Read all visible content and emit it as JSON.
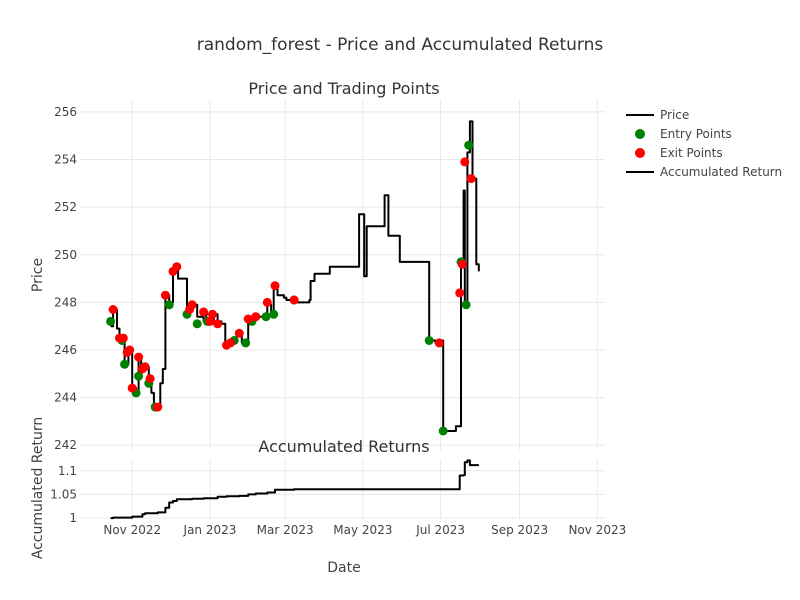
{
  "chart_data": {
    "type": "line",
    "title": "random_forest - Price and Accumulated Returns",
    "x_axis": {
      "label": "Date",
      "range": [
        "2022-09-21",
        "2023-11-07"
      ],
      "ticks": [
        {
          "date": "2022-11-01",
          "label": "Nov 2022"
        },
        {
          "date": "2023-01-01",
          "label": "Jan 2023"
        },
        {
          "date": "2023-03-01",
          "label": "Mar 2023"
        },
        {
          "date": "2023-05-01",
          "label": "May 2023"
        },
        {
          "date": "2023-07-01",
          "label": "Jul 2023"
        },
        {
          "date": "2023-09-01",
          "label": "Sep 2023"
        },
        {
          "date": "2023-11-01",
          "label": "Nov 2023"
        }
      ]
    },
    "legend": {
      "placement": "top-right",
      "entries": [
        {
          "label": "Price",
          "kind": "line",
          "color": "#000000"
        },
        {
          "label": "Entry Points",
          "kind": "marker",
          "color": "#008000"
        },
        {
          "label": "Exit Points",
          "kind": "marker",
          "color": "#ff0000"
        },
        {
          "label": "Accumulated Return",
          "kind": "line",
          "color": "#000000"
        }
      ]
    },
    "panels": [
      {
        "id": "price",
        "title": "Price and Trading Points",
        "ylabel": "Price",
        "ylim": [
          241.8,
          256.5
        ],
        "yticks": [
          242,
          244,
          246,
          248,
          250,
          252,
          254,
          256
        ],
        "grid": true,
        "series": [
          {
            "name": "Price",
            "type": "step",
            "color": "#000000",
            "points": [
              [
                "2022-10-15",
                247.0
              ],
              [
                "2022-10-17",
                247.7
              ],
              [
                "2022-10-20",
                246.9
              ],
              [
                "2022-10-22",
                246.5
              ],
              [
                "2022-10-24",
                246.4
              ],
              [
                "2022-10-26",
                245.4
              ],
              [
                "2022-10-29",
                245.9
              ],
              [
                "2022-11-01",
                244.4
              ],
              [
                "2022-11-04",
                244.2
              ],
              [
                "2022-11-06",
                245.7
              ],
              [
                "2022-11-08",
                245.2
              ],
              [
                "2022-11-10",
                245.3
              ],
              [
                "2022-11-14",
                244.6
              ],
              [
                "2022-11-16",
                244.2
              ],
              [
                "2022-11-18",
                243.6
              ],
              [
                "2022-11-21",
                243.6
              ],
              [
                "2022-11-23",
                244.6
              ],
              [
                "2022-11-25",
                245.2
              ],
              [
                "2022-11-27",
                248.3
              ],
              [
                "2022-11-30",
                248.0
              ],
              [
                "2022-12-03",
                249.3
              ],
              [
                "2022-12-05",
                249.4
              ],
              [
                "2022-12-07",
                249.0
              ],
              [
                "2022-12-12",
                249.0
              ],
              [
                "2022-12-14",
                247.6
              ],
              [
                "2022-12-17",
                247.8
              ],
              [
                "2022-12-19",
                247.9
              ],
              [
                "2022-12-22",
                247.4
              ],
              [
                "2022-12-27",
                247.2
              ],
              [
                "2022-12-29",
                247.5
              ],
              [
                "2023-01-01",
                247.2
              ],
              [
                "2023-01-04",
                247.5
              ],
              [
                "2023-01-07",
                247.2
              ],
              [
                "2023-01-10",
                247.1
              ],
              [
                "2023-01-13",
                246.3
              ],
              [
                "2023-01-16",
                246.3
              ],
              [
                "2023-01-19",
                246.4
              ],
              [
                "2023-01-22",
                246.6
              ],
              [
                "2023-01-26",
                246.3
              ],
              [
                "2023-01-28",
                246.3
              ],
              [
                "2023-01-31",
                247.3
              ],
              [
                "2023-02-03",
                247.2
              ],
              [
                "2023-02-05",
                247.4
              ],
              [
                "2023-02-13",
                247.4
              ],
              [
                "2023-02-15",
                247.9
              ],
              [
                "2023-02-18",
                247.5
              ],
              [
                "2023-02-20",
                248.7
              ],
              [
                "2023-02-23",
                248.3
              ],
              [
                "2023-02-28",
                248.2
              ],
              [
                "2023-03-02",
                248.1
              ],
              [
                "2023-03-08",
                248.1
              ],
              [
                "2023-03-10",
                248.0
              ],
              [
                "2023-03-20",
                248.1
              ],
              [
                "2023-03-21",
                248.9
              ],
              [
                "2023-03-24",
                249.2
              ],
              [
                "2023-04-05",
                249.5
              ],
              [
                "2023-04-25",
                249.5
              ],
              [
                "2023-04-28",
                251.7
              ],
              [
                "2023-05-02",
                249.1
              ],
              [
                "2023-05-04",
                251.2
              ],
              [
                "2023-05-18",
                252.5
              ],
              [
                "2023-05-21",
                250.8
              ],
              [
                "2023-05-30",
                249.7
              ],
              [
                "2023-06-22",
                246.4
              ],
              [
                "2023-06-27",
                246.3
              ],
              [
                "2023-06-30",
                246.4
              ],
              [
                "2023-07-03",
                242.6
              ],
              [
                "2023-07-13",
                242.8
              ],
              [
                "2023-07-17",
                249.7
              ],
              [
                "2023-07-19",
                252.7
              ],
              [
                "2023-07-20",
                248.0
              ],
              [
                "2023-07-22",
                254.3
              ],
              [
                "2023-07-24",
                255.6
              ],
              [
                "2023-07-26",
                253.2
              ],
              [
                "2023-07-29",
                249.6
              ],
              [
                "2023-07-31",
                249.3
              ]
            ]
          },
          {
            "name": "Entry Points",
            "type": "markers",
            "color": "#008000",
            "points": [
              [
                "2022-10-15",
                247.2
              ],
              [
                "2022-10-24",
                246.4
              ],
              [
                "2022-10-26",
                245.4
              ],
              [
                "2022-11-04",
                244.2
              ],
              [
                "2022-11-06",
                244.9
              ],
              [
                "2022-11-14",
                244.6
              ],
              [
                "2022-11-19",
                243.6
              ],
              [
                "2022-11-30",
                247.9
              ],
              [
                "2022-12-14",
                247.5
              ],
              [
                "2022-12-22",
                247.1
              ],
              [
                "2022-12-30",
                247.2
              ],
              [
                "2023-01-20",
                246.4
              ],
              [
                "2023-01-29",
                246.3
              ],
              [
                "2023-02-03",
                247.2
              ],
              [
                "2023-02-14",
                247.4
              ],
              [
                "2023-02-20",
                247.5
              ],
              [
                "2023-03-08",
                248.1
              ],
              [
                "2023-06-22",
                246.4
              ],
              [
                "2023-07-03",
                242.6
              ],
              [
                "2023-07-17",
                249.7
              ],
              [
                "2023-07-21",
                247.9
              ],
              [
                "2023-07-23",
                254.6
              ]
            ]
          },
          {
            "name": "Exit Points",
            "type": "markers",
            "color": "#ff0000",
            "points": [
              [
                "2022-10-17",
                247.7
              ],
              [
                "2022-10-22",
                246.5
              ],
              [
                "2022-10-25",
                246.5
              ],
              [
                "2022-10-28",
                245.9
              ],
              [
                "2022-10-30",
                246.0
              ],
              [
                "2022-11-01",
                244.4
              ],
              [
                "2022-11-06",
                245.7
              ],
              [
                "2022-11-09",
                245.2
              ],
              [
                "2022-11-11",
                245.3
              ],
              [
                "2022-11-15",
                244.8
              ],
              [
                "2022-11-21",
                243.6
              ],
              [
                "2022-11-27",
                248.3
              ],
              [
                "2022-12-03",
                249.3
              ],
              [
                "2022-12-06",
                249.5
              ],
              [
                "2022-12-16",
                247.7
              ],
              [
                "2022-12-18",
                247.9
              ],
              [
                "2022-12-27",
                247.6
              ],
              [
                "2023-01-01",
                247.2
              ],
              [
                "2023-01-03",
                247.5
              ],
              [
                "2023-01-07",
                247.1
              ],
              [
                "2023-01-14",
                246.2
              ],
              [
                "2023-01-17",
                246.3
              ],
              [
                "2023-01-24",
                246.7
              ],
              [
                "2023-01-31",
                247.3
              ],
              [
                "2023-02-06",
                247.4
              ],
              [
                "2023-02-15",
                248.0
              ],
              [
                "2023-02-21",
                248.7
              ],
              [
                "2023-03-08",
                248.1
              ],
              [
                "2023-06-30",
                246.3
              ],
              [
                "2023-07-16",
                248.4
              ],
              [
                "2023-07-18",
                249.6
              ],
              [
                "2023-07-20",
                253.9
              ],
              [
                "2023-07-25",
                253.2
              ]
            ]
          }
        ]
      },
      {
        "id": "returns",
        "title": "Accumulated Returns",
        "ylabel": "Accumulated Return",
        "ylim": [
          0.998,
          1.125
        ],
        "yticks": [
          1,
          1.05,
          1.1
        ],
        "grid": true,
        "series": [
          {
            "name": "Accumulated Return",
            "type": "step",
            "color": "#000000",
            "points": [
              [
                "2022-10-15",
                1.0
              ],
              [
                "2022-10-17",
                1.001
              ],
              [
                "2022-11-01",
                1.003
              ],
              [
                "2022-11-09",
                1.008
              ],
              [
                "2022-11-11",
                1.01
              ],
              [
                "2022-11-21",
                1.012
              ],
              [
                "2022-11-27",
                1.022
              ],
              [
                "2022-11-30",
                1.033
              ],
              [
                "2022-12-03",
                1.036
              ],
              [
                "2022-12-06",
                1.04
              ],
              [
                "2022-12-18",
                1.041
              ],
              [
                "2022-12-27",
                1.042
              ],
              [
                "2023-01-07",
                1.045
              ],
              [
                "2023-01-14",
                1.046
              ],
              [
                "2023-01-24",
                1.047
              ],
              [
                "2023-01-31",
                1.05
              ],
              [
                "2023-02-06",
                1.052
              ],
              [
                "2023-02-15",
                1.054
              ],
              [
                "2023-02-21",
                1.06
              ],
              [
                "2023-03-08",
                1.061
              ],
              [
                "2023-06-30",
                1.061
              ],
              [
                "2023-07-16",
                1.09
              ],
              [
                "2023-07-19",
                1.091
              ],
              [
                "2023-07-20",
                1.118
              ],
              [
                "2023-07-22",
                1.122
              ],
              [
                "2023-07-24",
                1.112
              ],
              [
                "2023-07-31",
                1.112
              ]
            ]
          }
        ]
      }
    ]
  }
}
